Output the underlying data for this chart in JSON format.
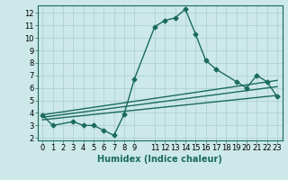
{
  "line1_x": [
    0,
    1,
    3,
    4,
    5,
    6,
    7,
    8,
    9,
    11,
    12,
    13,
    14,
    15,
    16,
    17,
    19,
    20,
    21,
    22,
    23
  ],
  "line1_y": [
    3.8,
    3.0,
    3.3,
    3.0,
    3.0,
    2.6,
    2.2,
    3.9,
    6.7,
    10.9,
    11.4,
    11.6,
    12.3,
    10.3,
    8.2,
    7.5,
    6.5,
    6.0,
    7.0,
    6.5,
    5.3
  ],
  "line2_x": [
    0,
    23
  ],
  "line2_y": [
    3.85,
    6.6
  ],
  "line3_x": [
    0,
    23
  ],
  "line3_y": [
    3.65,
    6.1
  ],
  "line4_x": [
    0,
    23
  ],
  "line4_y": [
    3.45,
    5.4
  ],
  "line_color": "#1a6b5a",
  "bg_color": "#cce8e8",
  "grid_color": "#aacece",
  "xlabel": "Humidex (Indice chaleur)",
  "xlim": [
    -0.5,
    23.5
  ],
  "ylim": [
    1.8,
    12.6
  ],
  "xticks": [
    0,
    1,
    2,
    3,
    4,
    5,
    6,
    7,
    8,
    9,
    11,
    12,
    13,
    14,
    15,
    16,
    17,
    18,
    19,
    20,
    21,
    22,
    23
  ],
  "yticks": [
    2,
    3,
    4,
    5,
    6,
    7,
    8,
    9,
    10,
    11,
    12
  ],
  "marker": "D",
  "markersize": 2.5,
  "linewidth": 1.0,
  "xlabel_fontsize": 7,
  "tick_fontsize": 6
}
